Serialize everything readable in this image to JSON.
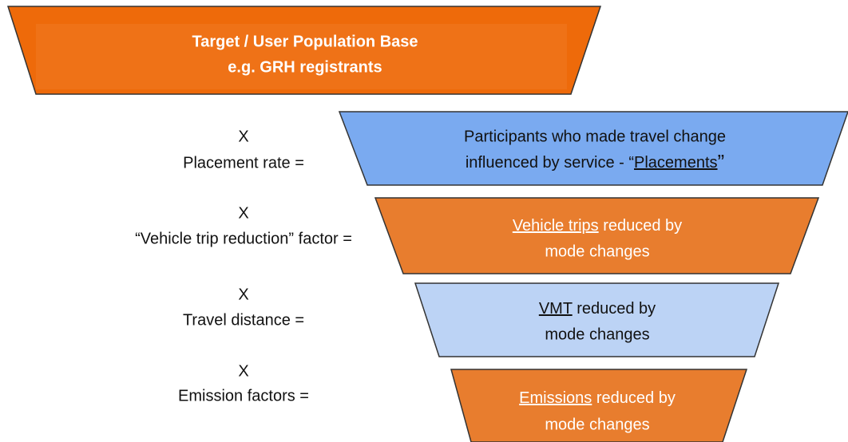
{
  "nodes": [
    {
      "lines": [
        "Target / User Population Base",
        "e.g. GRH registrants"
      ]
    },
    {
      "lines": [
        "Participants who made travel change",
        {
          "before": "influenced by service - “",
          "underlined": "Placements",
          "after": "”"
        }
      ]
    },
    {
      "lines": [
        {
          "underlined": "Vehicle trips",
          "after": " reduced by"
        },
        "mode changes"
      ]
    },
    {
      "lines": [
        {
          "underlined": "VMT",
          "after": " reduced by"
        },
        "mode changes"
      ]
    },
    {
      "lines": [
        {
          "underlined": "Emissions",
          "after": " reduced by"
        },
        "mode changes"
      ]
    }
  ],
  "steps": [
    {
      "symbol": "X",
      "label": "Placement rate ="
    },
    {
      "symbol": "X",
      "label": "“Vehicle trip reduction” factor ="
    },
    {
      "symbol": "X",
      "label": "Travel distance ="
    },
    {
      "symbol": "X",
      "label": "Emission factors ="
    }
  ]
}
